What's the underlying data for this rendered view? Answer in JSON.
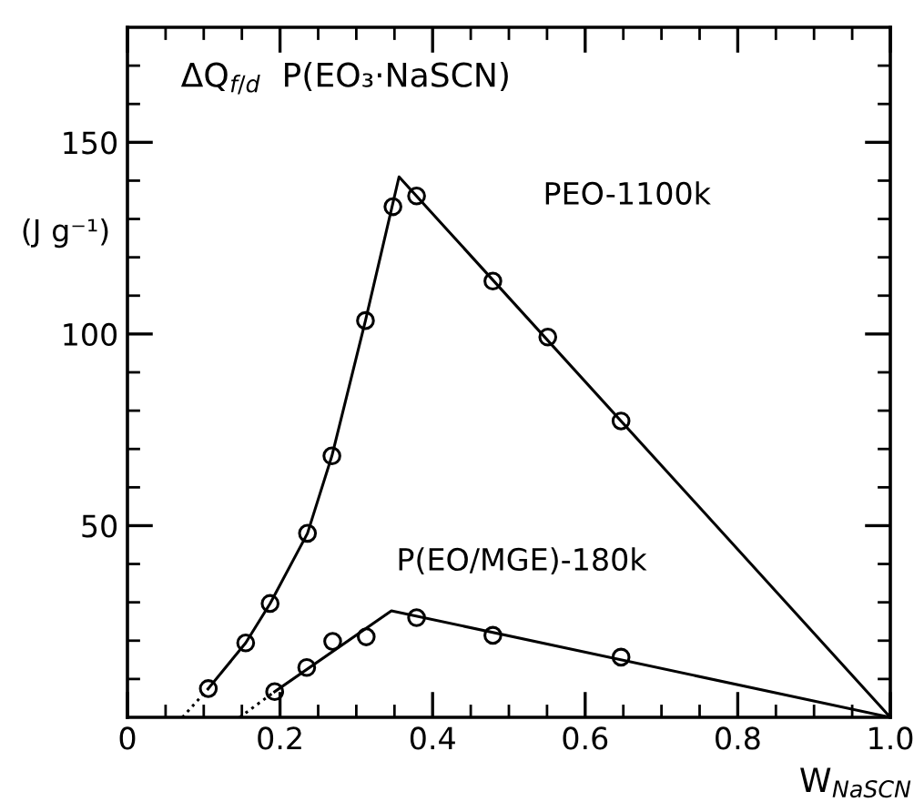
{
  "chart_data": {
    "type": "scatter",
    "title": "ΔQ$_{f/d}$  P(EO₃·NaSCN)",
    "xlabel": "W$_{NaSCN}$",
    "ylabel": "(J g⁻¹)",
    "xlim": [
      0,
      1.0
    ],
    "ylim": [
      0,
      180
    ],
    "xticks": [
      0,
      {
        "value": 0.05,
        "label": null
      },
      {
        "value": 0.1,
        "label": null
      },
      {
        "value": 0.15,
        "label": null
      },
      {
        "value": 0.2,
        "label": "0.2"
      },
      {
        "value": 0.25,
        "label": null
      },
      {
        "value": 0.3,
        "label": null
      },
      {
        "value": 0.35,
        "label": null
      },
      {
        "value": 0.4,
        "label": "0.4"
      },
      {
        "value": 0.45,
        "label": null
      },
      {
        "value": 0.5,
        "label": null
      },
      {
        "value": 0.55,
        "label": null
      },
      {
        "value": 0.6,
        "label": "0.6"
      },
      {
        "value": 0.65,
        "label": null
      },
      {
        "value": 0.7,
        "label": null
      },
      {
        "value": 0.75,
        "label": null
      },
      {
        "value": 0.8,
        "label": "0.8"
      },
      {
        "value": 0.85,
        "label": null
      },
      {
        "value": 0.9,
        "label": null
      },
      {
        "value": 0.95,
        "label": null
      },
      {
        "value": 1.0,
        "label": "1.0"
      }
    ],
    "yticks": [
      {
        "value": 10,
        "label": null
      },
      {
        "value": 20,
        "label": null
      },
      {
        "value": 30,
        "label": null
      },
      {
        "value": 40,
        "label": null
      },
      50,
      {
        "value": 60,
        "label": null
      },
      {
        "value": 70,
        "label": null
      },
      {
        "value": 80,
        "label": null
      },
      {
        "value": 90,
        "label": null
      },
      100,
      {
        "value": 110,
        "label": null
      },
      {
        "value": 120,
        "label": null
      },
      {
        "value": 130,
        "label": null
      },
      {
        "value": 140,
        "label": null
      },
      150,
      {
        "value": 160,
        "label": null
      },
      {
        "value": 170,
        "label": null
      }
    ],
    "grid": false,
    "legend": false,
    "marker": "circle",
    "series": [
      {
        "name": "PEO-1100k",
        "color": "#000000",
        "x": [
          0.106,
          0.155,
          0.187,
          0.236,
          0.268,
          0.312,
          0.348,
          0.379,
          0.479,
          0.551,
          0.647
        ],
        "values": [
          7.5,
          19.4,
          29.7,
          48,
          68.2,
          103.5,
          133.2,
          136,
          113.8,
          99.2,
          77.3
        ]
      },
      {
        "name": "P(EO/MGE)-180k",
        "color": "#000000",
        "x": [
          0.193,
          0.235,
          0.269,
          0.313,
          0.379,
          0.479,
          0.647
        ],
        "values": [
          6.7,
          13,
          19.8,
          21,
          26,
          21.4,
          15.7
        ]
      },
      {
        "type": "line",
        "color": "#000000",
        "line_style": "dotted",
        "marker": "none",
        "x": [
          0.072,
          0.106
        ],
        "values": [
          0,
          7.5
        ]
      },
      {
        "type": "line",
        "color": "#000000",
        "line_style": "solid",
        "marker": "none",
        "x": [
          0.106,
          0.155,
          0.187,
          0.236,
          0.268,
          0.312,
          0.356,
          1.0
        ],
        "values": [
          7.5,
          19.4,
          29.7,
          48,
          68.2,
          103.5,
          141,
          0
        ]
      },
      {
        "type": "line",
        "color": "#000000",
        "line_style": "dotted",
        "marker": "none",
        "x": [
          0.147,
          0.193
        ],
        "values": [
          0,
          6.7
        ]
      },
      {
        "type": "line",
        "color": "#000000",
        "line_style": "solid",
        "marker": "none",
        "x": [
          0.193,
          0.346,
          1.0
        ],
        "values": [
          6.7,
          27.8,
          0
        ]
      }
    ]
  }
}
